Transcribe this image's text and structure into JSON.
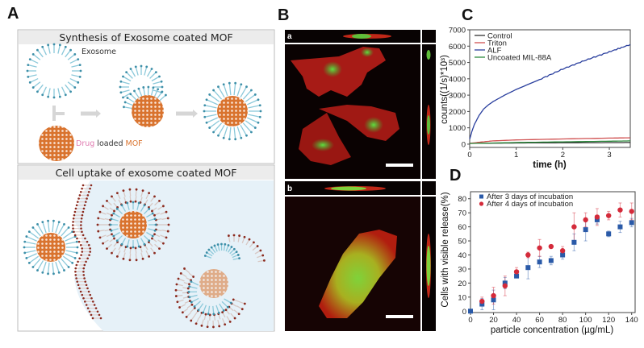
{
  "panels": {
    "A": {
      "label": "A",
      "top_title": "Synthesis of Exosome coated MOF",
      "exosome_label": "Exosome",
      "drug_word": "Drug",
      "loaded_word": " loaded ",
      "mof_word": "MOF",
      "bottom_title": "Cell uptake of exosome coated MOF",
      "colors": {
        "lipid": "#3d8fa8",
        "mof": "#d9732e",
        "membrane": "#8b2a1e",
        "cytoplasm": "#e6f1f8",
        "drug": "#e07bb0"
      }
    },
    "B": {
      "label": "B",
      "sub_a": "a",
      "sub_b": "b",
      "colors": {
        "actin": "#d42020",
        "particles": "#3fd23a"
      }
    },
    "C": {
      "label": "C"
    },
    "D": {
      "label": "D"
    }
  },
  "chart_data": [
    {
      "panel": "C",
      "type": "line",
      "xlabel": "time (h)",
      "ylabel": "counts((1/s)*10³)",
      "xlim": [
        0,
        3.45
      ],
      "ylim": [
        -200,
        7000
      ],
      "xticks": [
        0,
        1,
        2,
        3
      ],
      "yticks": [
        0,
        1000,
        2000,
        3000,
        4000,
        5000,
        6000,
        7000
      ],
      "legend": "top-left",
      "series": [
        {
          "name": "Control",
          "color": "#333333",
          "x": [
            0,
            1,
            2,
            3,
            3.45
          ],
          "y": [
            50,
            70,
            85,
            95,
            100
          ]
        },
        {
          "name": "Triton",
          "color": "#d05050",
          "x": [
            0,
            0.25,
            0.5,
            1,
            2,
            3,
            3.45
          ],
          "y": [
            50,
            130,
            200,
            260,
            320,
            370,
            390
          ]
        },
        {
          "name": "ALF",
          "color": "#2a3f9e",
          "x": [
            0,
            0.05,
            0.1,
            0.2,
            0.3,
            0.4,
            0.5,
            0.75,
            1,
            1.5,
            2,
            2.5,
            3,
            3.45
          ],
          "y": [
            300,
            800,
            1200,
            1750,
            2150,
            2400,
            2600,
            3000,
            3350,
            3950,
            4600,
            5150,
            5650,
            6100
          ]
        },
        {
          "name": "Uncoated MIL-88A",
          "color": "#2e8b3e",
          "x": [
            0,
            1,
            2,
            3,
            3.45
          ],
          "y": [
            40,
            100,
            140,
            180,
            200
          ]
        }
      ]
    },
    {
      "panel": "D",
      "type": "scatter",
      "xlabel": "particle concentration (µg/mL)",
      "ylabel": "Cells with visible release(%)",
      "xlim": [
        0,
        143
      ],
      "ylim": [
        -1,
        85
      ],
      "xticks": [
        0,
        20,
        40,
        60,
        80,
        100,
        120,
        140
      ],
      "yticks": [
        0,
        10,
        20,
        30,
        40,
        50,
        60,
        70,
        80
      ],
      "legend": "top-left",
      "series": [
        {
          "name": "After 3 days of incubation",
          "color": "#2a5aa8",
          "marker": "square",
          "x": [
            0,
            10,
            20,
            30,
            40,
            50,
            60,
            70,
            80,
            90,
            100,
            110,
            120,
            130,
            140
          ],
          "y": [
            0,
            5,
            8,
            20,
            25,
            31,
            35,
            36,
            40,
            49,
            58,
            65,
            55,
            60,
            63
          ],
          "err": [
            0,
            4,
            7,
            4,
            1,
            8,
            4,
            3,
            3,
            6,
            8,
            3,
            2,
            4,
            3
          ]
        },
        {
          "name": "After 4 days of incubation",
          "color": "#d42a3a",
          "marker": "circle",
          "x": [
            10,
            20,
            30,
            40,
            50,
            60,
            70,
            80,
            90,
            100,
            110,
            120,
            130,
            140
          ],
          "y": [
            7,
            11,
            18,
            28,
            40,
            45,
            46,
            43,
            60,
            65,
            67,
            68,
            72,
            71
          ],
          "err": [
            3,
            6,
            7,
            3,
            2,
            6,
            1,
            3,
            10,
            5,
            6,
            3,
            5,
            6
          ]
        }
      ]
    }
  ]
}
